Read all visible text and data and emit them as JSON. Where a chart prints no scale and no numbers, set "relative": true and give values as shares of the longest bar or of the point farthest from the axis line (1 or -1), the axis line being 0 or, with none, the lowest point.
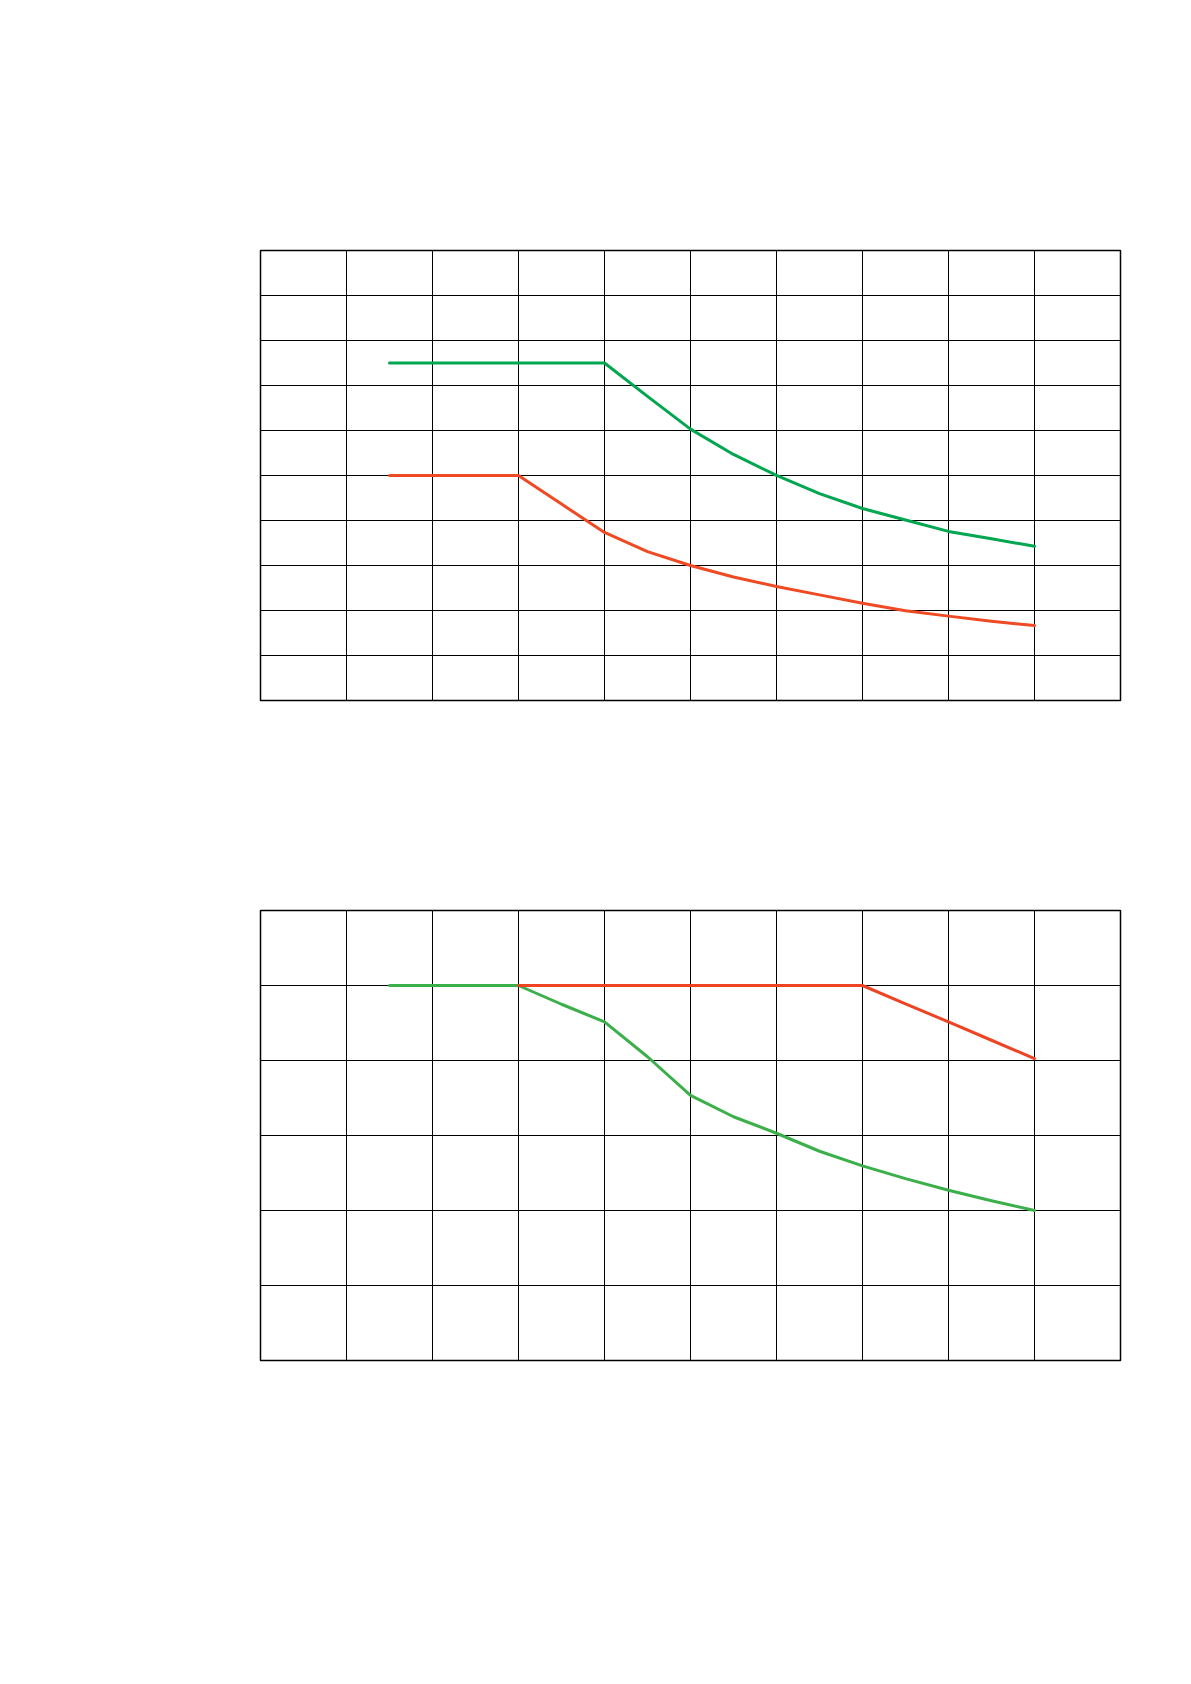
{
  "chart_data": [
    {
      "type": "line",
      "relative": true,
      "grid": true,
      "line_style": "solid",
      "marker": "none",
      "categories": [
        null,
        null,
        null,
        null,
        null,
        null,
        null,
        null,
        null,
        null,
        null,
        null,
        null,
        null,
        null,
        null,
        null,
        null,
        null,
        null,
        null
      ],
      "series": [
        {
          "color": "#00a650",
          "values": [
            null,
            null,
            null,
            1,
            1,
            1,
            1,
            1,
            1,
            0.901,
            0.804,
            0.729,
            0.667,
            0.613,
            0.569,
            0.535,
            0.501,
            0.479,
            0.457,
            null,
            null
          ]
        },
        {
          "color": "#ef4a23",
          "values": [
            null,
            null,
            null,
            0.667,
            0.667,
            0.667,
            0.667,
            0.582,
            0.498,
            0.441,
            0.4,
            0.366,
            0.338,
            0.313,
            0.288,
            0.266,
            0.25,
            0.235,
            0.222,
            null,
            null
          ]
        }
      ]
    },
    {
      "type": "line",
      "relative": true,
      "grid": true,
      "line_style": "solid",
      "marker": "none",
      "categories": [
        null,
        null,
        null,
        null,
        null,
        null,
        null,
        null,
        null,
        null,
        null,
        null,
        null,
        null,
        null,
        null,
        null,
        null,
        null,
        null,
        null
      ],
      "series": [
        {
          "color": "#3aaf4a",
          "values": [
            null,
            null,
            null,
            1,
            1,
            1,
            1,
            0.95,
            0.903,
            0.81,
            0.707,
            0.65,
            0.606,
            0.558,
            0.519,
            0.485,
            0.454,
            0.426,
            0.4,
            null,
            null
          ]
        },
        {
          "color": "#ee4423",
          "values": [
            null,
            null,
            null,
            null,
            null,
            null,
            1,
            1,
            1,
            1,
            1,
            1,
            1,
            1,
            1,
            0.951,
            0.903,
            0.854,
            0.805,
            null,
            null
          ]
        }
      ]
    }
  ]
}
